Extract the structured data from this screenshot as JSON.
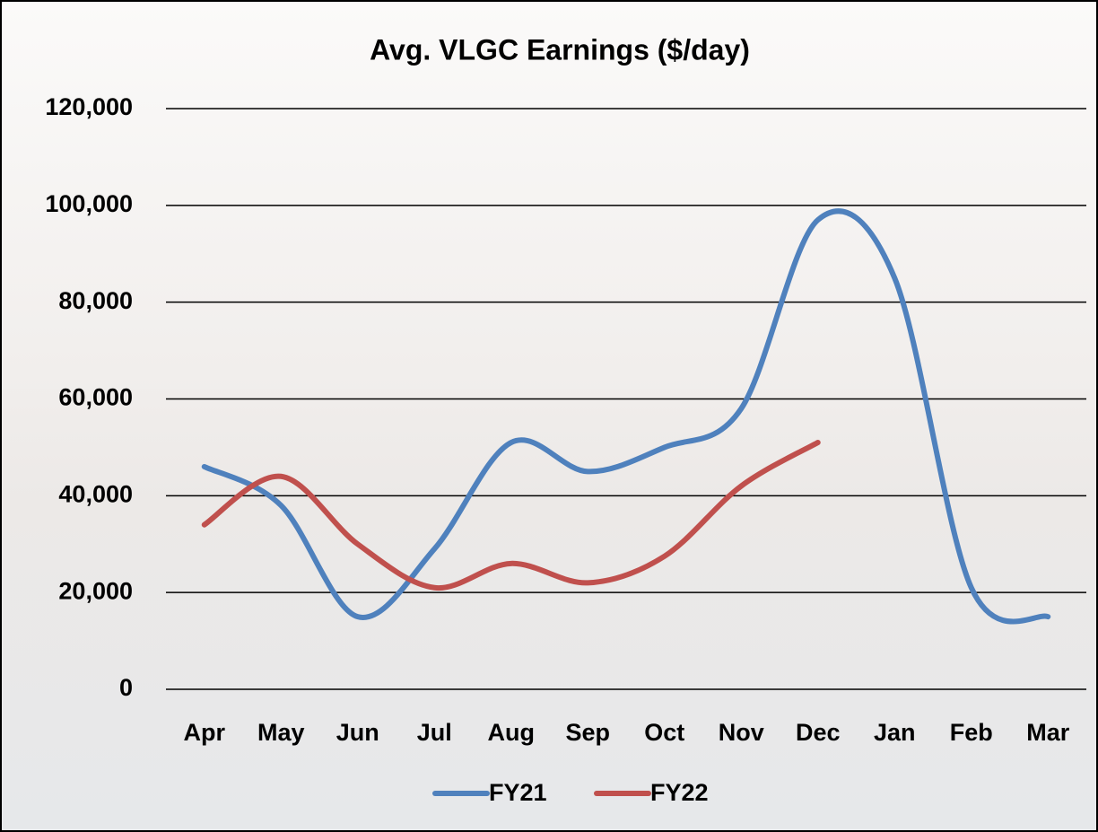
{
  "chart_data": {
    "type": "line",
    "title": "Avg. VLGC Earnings ($/day)",
    "categories": [
      "Apr",
      "May",
      "Jun",
      "Jul",
      "Aug",
      "Sep",
      "Oct",
      "Nov",
      "Dec",
      "Jan",
      "Feb",
      "Mar"
    ],
    "series": [
      {
        "name": "FY21",
        "color": "#4f81bd",
        "values": [
          46000,
          38000,
          15000,
          29000,
          51000,
          45000,
          50000,
          58000,
          97000,
          85000,
          21000,
          15000
        ]
      },
      {
        "name": "FY22",
        "color": "#c0504d",
        "values": [
          34000,
          44000,
          30000,
          21000,
          26000,
          22000,
          27500,
          42000,
          51000,
          null,
          null,
          null
        ]
      }
    ],
    "ylim": [
      0,
      120000
    ],
    "yticks": [
      {
        "value": 0,
        "label": "0"
      },
      {
        "value": 20000,
        "label": "20,000"
      },
      {
        "value": 40000,
        "label": "40,000"
      },
      {
        "value": 60000,
        "label": "60,000"
      },
      {
        "value": 80000,
        "label": "80,000"
      },
      {
        "value": 100000,
        "label": "100,000"
      },
      {
        "value": 120000,
        "label": "120,000"
      }
    ],
    "grid": true,
    "smooth": true,
    "legend": "bottom"
  }
}
